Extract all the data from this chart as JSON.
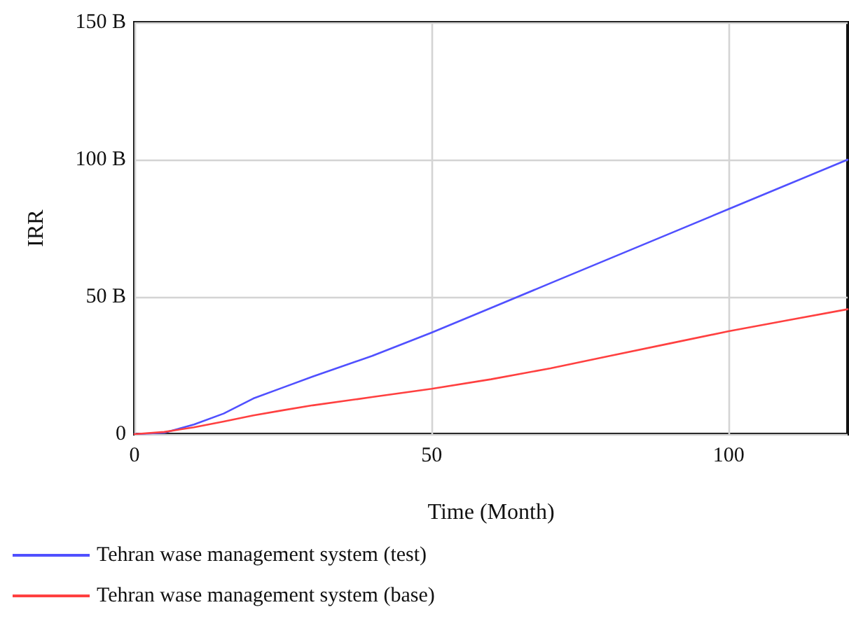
{
  "chart_data": {
    "type": "line",
    "xlabel": "Time (Month)",
    "ylabel": "IRR",
    "x": [
      0,
      5,
      10,
      15,
      20,
      25,
      30,
      40,
      50,
      60,
      70,
      80,
      90,
      100,
      110,
      120
    ],
    "series": [
      {
        "name": "Tehran wase management system (test)",
        "color": "#5050ff",
        "values": [
          0,
          0.5,
          3.5,
          7.5,
          13,
          17,
          21,
          28.5,
          37,
          46,
          55,
          64,
          73,
          82,
          91,
          100
        ]
      },
      {
        "name": "Tehran wase management system (base)",
        "color": "#ff4040",
        "values": [
          0,
          0.8,
          2.5,
          4.6,
          6.8,
          8.7,
          10.5,
          13.5,
          16.5,
          20,
          24,
          28.5,
          33,
          37.5,
          41.5,
          45.5
        ]
      }
    ],
    "xlim": [
      0,
      120
    ],
    "xticks": [
      0,
      50,
      100
    ],
    "ylim": [
      0,
      150
    ],
    "yticks": [
      {
        "value": 0,
        "label": "0"
      },
      {
        "value": 50,
        "label": "50 B"
      },
      {
        "value": 100,
        "label": "100 B"
      },
      {
        "value": 150,
        "label": "150 B"
      }
    ],
    "grid": true,
    "legend": "bottom left",
    "marker": "none",
    "line_style": "solid"
  }
}
